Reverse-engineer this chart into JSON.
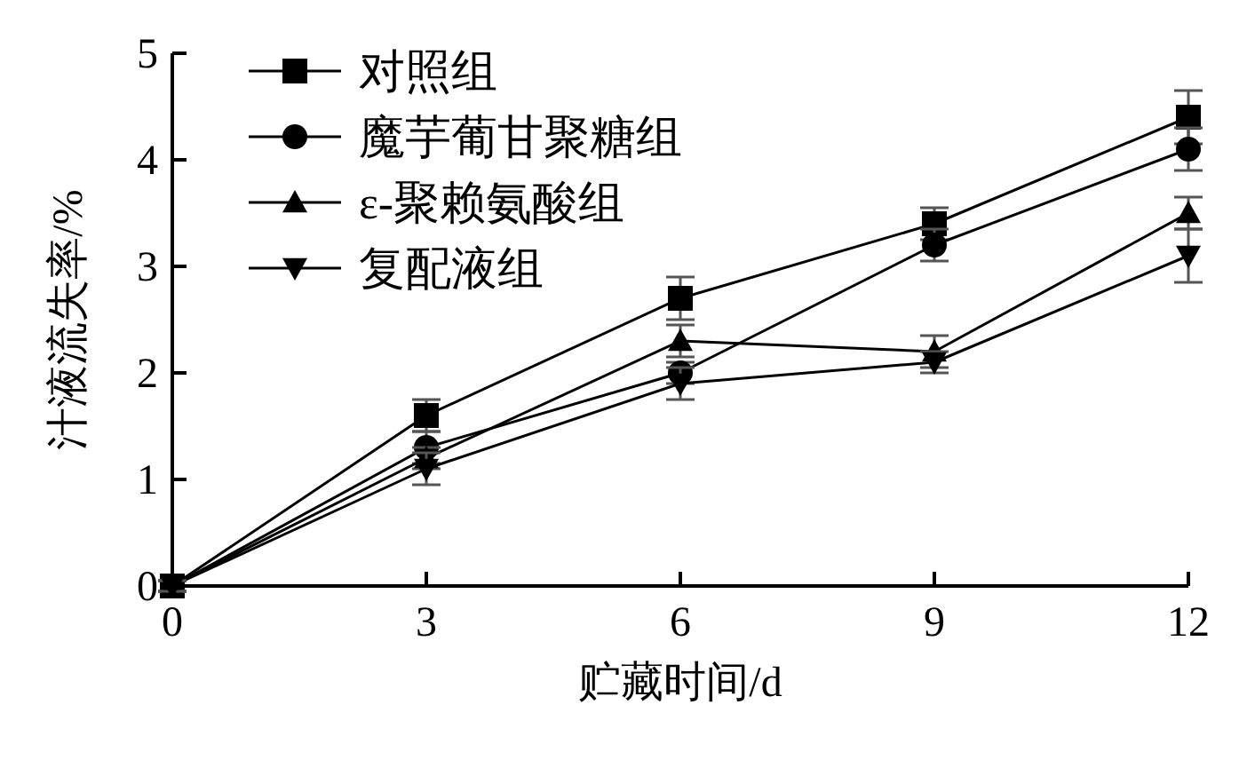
{
  "chart_data": {
    "type": "line",
    "xlabel": "贮藏时间/d",
    "ylabel": "汁液流失率/%",
    "x": [
      0,
      3,
      6,
      9,
      12
    ],
    "xlim": [
      0,
      12
    ],
    "xticks": [
      0,
      3,
      6,
      9,
      12
    ],
    "ylim": [
      0,
      5
    ],
    "yticks": [
      0,
      1,
      2,
      3,
      4,
      5
    ],
    "grid": false,
    "legend": "top left",
    "line_style": "solid",
    "series": [
      {
        "name": "对照组",
        "color": "#000000",
        "marker": "square",
        "values": [
          0,
          1.6,
          2.7,
          3.4,
          4.4
        ],
        "errors": [
          0.05,
          0.15,
          0.2,
          0.15,
          0.25
        ]
      },
      {
        "name": "魔芋葡甘聚糖组",
        "color": "#000000",
        "marker": "circle",
        "values": [
          0,
          1.3,
          2.0,
          3.2,
          4.1
        ],
        "errors": [
          0.05,
          0.15,
          0.1,
          0.15,
          0.2
        ]
      },
      {
        "name": "ε-聚赖氨酸组",
        "color": "#000000",
        "marker": "triangle",
        "values": [
          0,
          1.2,
          2.3,
          2.2,
          3.5
        ],
        "errors": [
          0.05,
          0.1,
          0.15,
          0.15,
          0.15
        ]
      },
      {
        "name": "复配液组",
        "color": "#000000",
        "marker": "triangle-down",
        "values": [
          0,
          1.1,
          1.9,
          2.1,
          3.1
        ],
        "errors": [
          0.05,
          0.15,
          0.15,
          0.1,
          0.25
        ]
      }
    ]
  }
}
